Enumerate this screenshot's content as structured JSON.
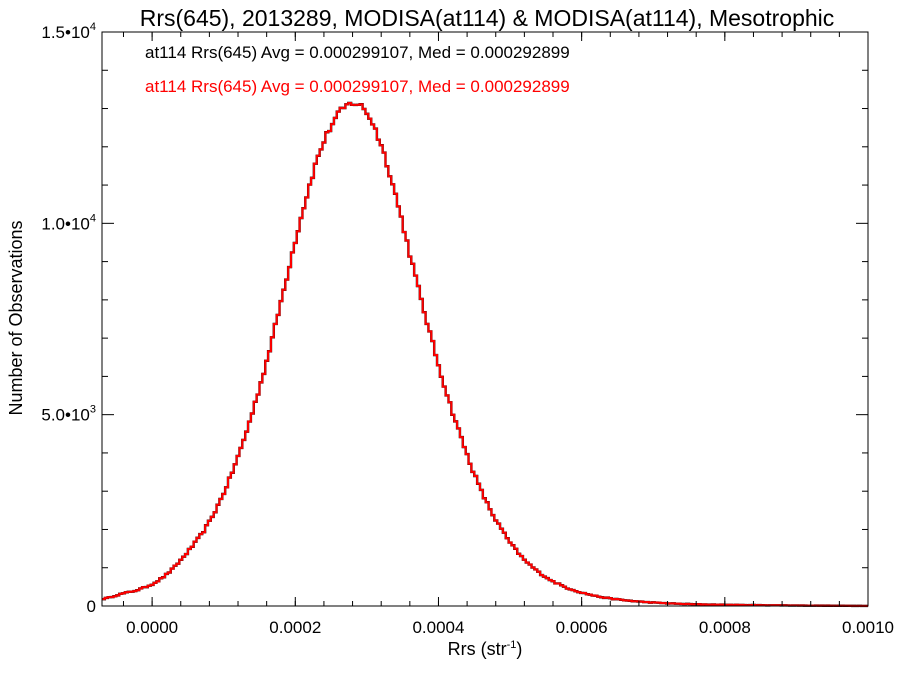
{
  "chart_data": {
    "type": "histogram",
    "title": "Rrs(645), 2013289, MODISA(at114) & MODISA(at114), Mesotrophic",
    "xlabel": {
      "base": "Rrs (str",
      "sup": "-1",
      "end": ")"
    },
    "ylabel": "Number of Observations",
    "xlim": [
      -7e-05,
      0.001
    ],
    "ylim": [
      0,
      15000
    ],
    "x_ticks": [
      {
        "value": 0.0,
        "label": "0.0000"
      },
      {
        "value": 0.0002,
        "label": "0.0002"
      },
      {
        "value": 0.0004,
        "label": "0.0004"
      },
      {
        "value": 0.0006,
        "label": "0.0006"
      },
      {
        "value": 0.0008,
        "label": "0.0008"
      },
      {
        "value": 0.001,
        "label": "0.0010"
      }
    ],
    "y_ticks": [
      {
        "value": 0,
        "base": "0",
        "sup": ""
      },
      {
        "value": 5000,
        "base": "5.0•10",
        "sup": "3"
      },
      {
        "value": 10000,
        "base": "1.0•10",
        "sup": "4"
      },
      {
        "value": 15000,
        "base": "1.5•10",
        "sup": "4"
      }
    ],
    "annotations": [
      {
        "text": "at114 Rrs(645) Avg = 0.000299107, Med = 0.000292899",
        "color": "#000000"
      },
      {
        "text": "at114 Rrs(645) Avg = 0.000299107, Med = 0.000292899",
        "color": "#ff0000"
      }
    ],
    "series": [
      {
        "color": "#000000"
      },
      {
        "color": "#ff0000"
      }
    ],
    "bin_width": 4e-06,
    "points": [
      [
        -7e-05,
        180
      ],
      [
        -6e-05,
        220
      ],
      [
        -5e-05,
        280
      ],
      [
        -4e-05,
        330
      ],
      [
        -3e-05,
        370
      ],
      [
        -2e-05,
        420
      ],
      [
        -1e-05,
        490
      ],
      [
        0.0,
        570
      ],
      [
        1e-05,
        680
      ],
      [
        2e-05,
        820
      ],
      [
        3e-05,
        990
      ],
      [
        4e-05,
        1200
      ],
      [
        5e-05,
        1420
      ],
      [
        6e-05,
        1650
      ],
      [
        7e-05,
        1900
      ],
      [
        8e-05,
        2200
      ],
      [
        9e-05,
        2550
      ],
      [
        0.0001,
        2950
      ],
      [
        0.00011,
        3400
      ],
      [
        0.00012,
        3900
      ],
      [
        0.00013,
        4450
      ],
      [
        0.00014,
        5050
      ],
      [
        0.00015,
        5700
      ],
      [
        0.00016,
        6400
      ],
      [
        0.00017,
        7150
      ],
      [
        0.00018,
        7950
      ],
      [
        0.00019,
        8750
      ],
      [
        0.0002,
        9550
      ],
      [
        0.00021,
        10300
      ],
      [
        0.00022,
        11000
      ],
      [
        0.00023,
        11650
      ],
      [
        0.00024,
        12150
      ],
      [
        0.00025,
        12550
      ],
      [
        0.00026,
        12850
      ],
      [
        0.00027,
        13050
      ],
      [
        0.00028,
        13150
      ],
      [
        0.00029,
        13100
      ],
      [
        0.0003,
        12900
      ],
      [
        0.00031,
        12550
      ],
      [
        0.00032,
        12050
      ],
      [
        0.00033,
        11450
      ],
      [
        0.00034,
        10750
      ],
      [
        0.00035,
        10000
      ],
      [
        0.00036,
        9200
      ],
      [
        0.00037,
        8450
      ],
      [
        0.00038,
        7700
      ],
      [
        0.00039,
        7000
      ],
      [
        0.0004,
        6300
      ],
      [
        0.00041,
        5650
      ],
      [
        0.00042,
        5050
      ],
      [
        0.00043,
        4500
      ],
      [
        0.00044,
        3950
      ],
      [
        0.00045,
        3450
      ],
      [
        0.00046,
        3000
      ],
      [
        0.00047,
        2600
      ],
      [
        0.00048,
        2250
      ],
      [
        0.00049,
        1950
      ],
      [
        0.0005,
        1650
      ],
      [
        0.00052,
        1200
      ],
      [
        0.00054,
        880
      ],
      [
        0.00056,
        640
      ],
      [
        0.00058,
        470
      ],
      [
        0.0006,
        350
      ],
      [
        0.00062,
        260
      ],
      [
        0.00064,
        195
      ],
      [
        0.00066,
        150
      ],
      [
        0.00068,
        115
      ],
      [
        0.0007,
        90
      ],
      [
        0.00072,
        70
      ],
      [
        0.00074,
        55
      ],
      [
        0.00076,
        45
      ],
      [
        0.00078,
        38
      ],
      [
        0.0008,
        32
      ],
      [
        0.00082,
        27
      ],
      [
        0.00084,
        23
      ],
      [
        0.00086,
        19
      ],
      [
        0.00088,
        16
      ],
      [
        0.0009,
        13
      ],
      [
        0.00092,
        10
      ],
      [
        0.00094,
        8
      ],
      [
        0.00096,
        6
      ],
      [
        0.00098,
        4
      ],
      [
        0.001,
        3
      ]
    ]
  }
}
